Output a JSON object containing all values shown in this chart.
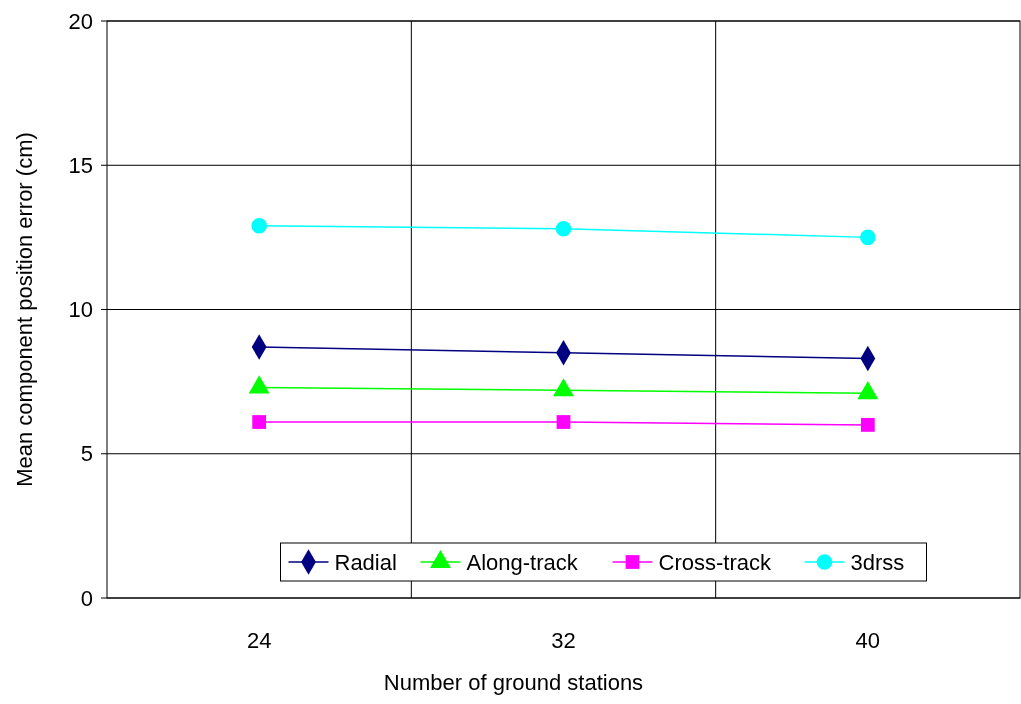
{
  "chart_data": {
    "type": "line",
    "xlabel": "Number of ground stations",
    "ylabel": "Mean component position error (cm)",
    "categories": [
      "24",
      "32",
      "40"
    ],
    "ylim": [
      0,
      20
    ],
    "yticks": [
      0,
      5,
      10,
      15,
      20
    ],
    "grid": true,
    "legend": "bottom",
    "series": [
      {
        "name": "Radial",
        "color": "#000080",
        "marker": "diamond",
        "values": [
          8.7,
          8.5,
          8.3
        ]
      },
      {
        "name": "Along-track",
        "color": "#00ff00",
        "marker": "triangle",
        "values": [
          7.3,
          7.2,
          7.1
        ]
      },
      {
        "name": "Cross-track",
        "color": "#ff00ff",
        "marker": "square",
        "values": [
          6.1,
          6.1,
          6.0
        ]
      },
      {
        "name": "3drss",
        "color": "#00ffff",
        "marker": "circle",
        "values": [
          12.9,
          12.8,
          12.5
        ]
      }
    ]
  }
}
